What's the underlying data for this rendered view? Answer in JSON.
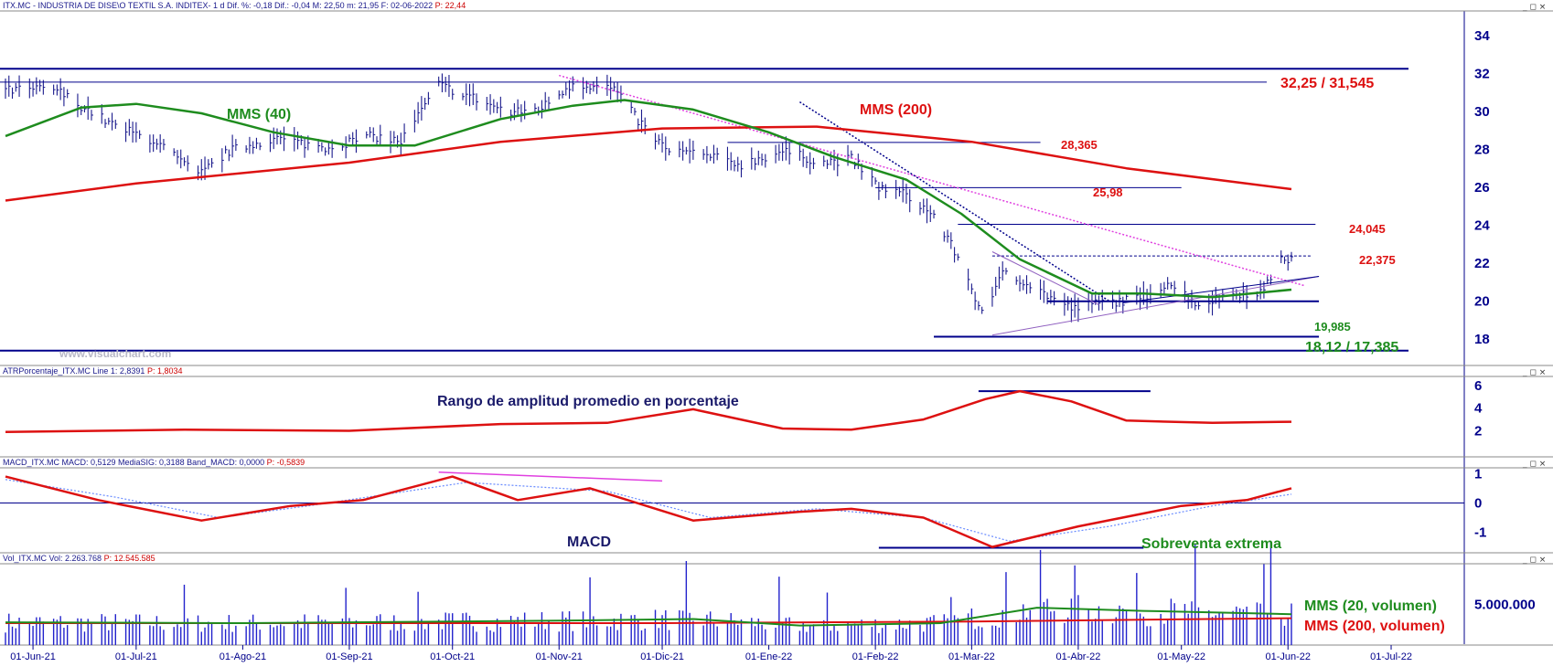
{
  "panels": {
    "price": {
      "header": "ITX.MC - INDUSTRIA DE DISE\\O TEXTIL S.A. INDITEX-  1 d  Dif. %: -0,18  Dif.: -0,04  M: 22,50  m: 21,95  F: 02-06-2022",
      "header_last": "P: 22,44",
      "watermark": "www.visualchart.com"
    },
    "atr": {
      "header": "ATRPorcentaje_ITX.MC  Line 1: 2,8391",
      "header_last": "P: 1,8034"
    },
    "macd": {
      "header": "MACD_ITX.MC  MACD: 0,5129  MediaSIG: 0,3188  Band_MACD: 0,0000",
      "header_last": "P: -0,5839"
    },
    "volume": {
      "header": "Vol_ITX.MC  Vol: 2.263.768",
      "header_last": "P: 12.545.585"
    }
  },
  "window_buttons": "_ ◻ ×",
  "colors": {
    "green": "#1e8c1e",
    "red": "#dd1111",
    "navy": "#00008b",
    "magenta": "#e040e0",
    "candle": "#1a1a8c",
    "blue": "#2222cc",
    "light_blue": "#6a8cff"
  },
  "chart_data": [
    {
      "type": "candlestick",
      "x_ticks": [
        "01-Jun-21",
        "01-Jul-21",
        "01-Ago-21",
        "01-Sep-21",
        "01-Oct-21",
        "01-Nov-21",
        "01-Dic-21",
        "01-Ene-22",
        "01-Feb-22",
        "01-Mar-22",
        "01-Abr-22",
        "01-May-22",
        "01-Jun-22",
        "01-Jul-22"
      ],
      "y_ticks": [
        18,
        20,
        22,
        24,
        26,
        28,
        30,
        32,
        34
      ],
      "ylim": [
        16.6,
        35.3
      ],
      "close_path": [
        {
          "d": "2021-05-24",
          "v": 31.1
        },
        {
          "d": "2021-06-07",
          "v": 31.2
        },
        {
          "d": "2021-06-15",
          "v": 30.3
        },
        {
          "d": "2021-06-25",
          "v": 29.2
        },
        {
          "d": "2021-07-07",
          "v": 28.4
        },
        {
          "d": "2021-07-19",
          "v": 26.6
        },
        {
          "d": "2021-07-28",
          "v": 27.9
        },
        {
          "d": "2021-08-10",
          "v": 28.6
        },
        {
          "d": "2021-08-25",
          "v": 28.1
        },
        {
          "d": "2021-09-08",
          "v": 28.7
        },
        {
          "d": "2021-09-16",
          "v": 28.4
        },
        {
          "d": "2021-09-27",
          "v": 31.4
        },
        {
          "d": "2021-10-06",
          "v": 30.8
        },
        {
          "d": "2021-10-18",
          "v": 29.9
        },
        {
          "d": "2021-10-27",
          "v": 30.2
        },
        {
          "d": "2021-11-05",
          "v": 31.5
        },
        {
          "d": "2021-11-17",
          "v": 31.2
        },
        {
          "d": "2021-11-24",
          "v": 29.5
        },
        {
          "d": "2021-12-02",
          "v": 28.0
        },
        {
          "d": "2021-12-13",
          "v": 27.7
        },
        {
          "d": "2021-12-24",
          "v": 27.2
        },
        {
          "d": "2022-01-05",
          "v": 27.9
        },
        {
          "d": "2022-01-17",
          "v": 27.3
        },
        {
          "d": "2022-01-25",
          "v": 27.5
        },
        {
          "d": "2022-02-02",
          "v": 26.0
        },
        {
          "d": "2022-02-10",
          "v": 25.6
        },
        {
          "d": "2022-02-18",
          "v": 24.5
        },
        {
          "d": "2022-02-26",
          "v": 22.0
        },
        {
          "d": "2022-03-05",
          "v": 18.9
        },
        {
          "d": "2022-03-10",
          "v": 21.7
        },
        {
          "d": "2022-03-21",
          "v": 20.5
        },
        {
          "d": "2022-03-30",
          "v": 19.6
        },
        {
          "d": "2022-04-07",
          "v": 19.9
        },
        {
          "d": "2022-04-19",
          "v": 20.1
        },
        {
          "d": "2022-04-27",
          "v": 21.0
        },
        {
          "d": "2022-05-06",
          "v": 19.8
        },
        {
          "d": "2022-05-16",
          "v": 20.4
        },
        {
          "d": "2022-05-25",
          "v": 20.5
        },
        {
          "d": "2022-05-30",
          "v": 22.4
        },
        {
          "d": "2022-06-02",
          "v": 22.1
        }
      ],
      "series": [
        {
          "name": "MMS (40)",
          "color": "#1e8c1e",
          "points": [
            {
              "d": "2021-05-24",
              "v": 28.7
            },
            {
              "d": "2021-06-15",
              "v": 30.2
            },
            {
              "d": "2021-07-01",
              "v": 30.4
            },
            {
              "d": "2021-07-20",
              "v": 29.9
            },
            {
              "d": "2021-08-10",
              "v": 28.9
            },
            {
              "d": "2021-09-01",
              "v": 28.2
            },
            {
              "d": "2021-09-20",
              "v": 28.2
            },
            {
              "d": "2021-10-15",
              "v": 29.6
            },
            {
              "d": "2021-11-05",
              "v": 30.3
            },
            {
              "d": "2021-11-20",
              "v": 30.6
            },
            {
              "d": "2021-12-10",
              "v": 30.1
            },
            {
              "d": "2022-01-01",
              "v": 28.9
            },
            {
              "d": "2022-01-20",
              "v": 27.6
            },
            {
              "d": "2022-02-10",
              "v": 26.4
            },
            {
              "d": "2022-02-26",
              "v": 24.6
            },
            {
              "d": "2022-03-15",
              "v": 22.2
            },
            {
              "d": "2022-04-05",
              "v": 20.4
            },
            {
              "d": "2022-04-20",
              "v": 20.4
            },
            {
              "d": "2022-05-10",
              "v": 20.2
            },
            {
              "d": "2022-06-02",
              "v": 20.6
            }
          ]
        },
        {
          "name": "MMS (200)",
          "color": "#dd1111",
          "points": [
            {
              "d": "2021-05-24",
              "v": 25.3
            },
            {
              "d": "2021-07-01",
              "v": 26.2
            },
            {
              "d": "2021-09-01",
              "v": 27.3
            },
            {
              "d": "2021-10-15",
              "v": 28.4
            },
            {
              "d": "2021-12-01",
              "v": 29.1
            },
            {
              "d": "2022-01-15",
              "v": 29.2
            },
            {
              "d": "2022-03-01",
              "v": 28.4
            },
            {
              "d": "2022-04-15",
              "v": 27.0
            },
            {
              "d": "2022-06-02",
              "v": 25.9
            }
          ]
        }
      ],
      "levels": [
        {
          "label": "32,25 / 31,545",
          "values": [
            32.25,
            31.545
          ],
          "color": "#dd1111"
        },
        {
          "label": "28,365",
          "values": [
            28.365
          ],
          "color": "#dd1111"
        },
        {
          "label": "25,98",
          "values": [
            25.98
          ],
          "color": "#dd1111"
        },
        {
          "label": "24,045",
          "values": [
            24.045
          ],
          "color": "#dd1111"
        },
        {
          "label": "22,375",
          "values": [
            22.375
          ],
          "color": "#dd1111"
        },
        {
          "label": "19,985",
          "values": [
            19.985
          ],
          "color": "#1e8c1e"
        },
        {
          "label": "18,12 / 17,385",
          "values": [
            18.12,
            17.385
          ],
          "color": "#1e8c1e"
        }
      ],
      "annotations": [
        "MMS (40)",
        "MMS (200)"
      ]
    },
    {
      "type": "line",
      "y_ticks": [
        2,
        4,
        6
      ],
      "ylim": [
        -0.3,
        6.8
      ],
      "annotation": "Rango de amplitud promedio en porcentaje",
      "series": [
        {
          "color": "#dd1111",
          "points": [
            {
              "d": "2021-05-24",
              "v": 1.9
            },
            {
              "d": "2021-07-15",
              "v": 2.1
            },
            {
              "d": "2021-09-01",
              "v": 2.0
            },
            {
              "d": "2021-10-15",
              "v": 2.6
            },
            {
              "d": "2021-11-15",
              "v": 2.7
            },
            {
              "d": "2021-12-10",
              "v": 3.9
            },
            {
              "d": "2022-01-05",
              "v": 2.2
            },
            {
              "d": "2022-01-25",
              "v": 2.1
            },
            {
              "d": "2022-02-15",
              "v": 3.0
            },
            {
              "d": "2022-03-05",
              "v": 4.8
            },
            {
              "d": "2022-03-15",
              "v": 5.5
            },
            {
              "d": "2022-03-30",
              "v": 4.6
            },
            {
              "d": "2022-04-15",
              "v": 2.9
            },
            {
              "d": "2022-05-10",
              "v": 2.7
            },
            {
              "d": "2022-06-02",
              "v": 2.8
            }
          ]
        }
      ]
    },
    {
      "type": "line",
      "y_ticks": [
        1,
        0,
        -1
      ],
      "ylim": [
        -1.7,
        1.2
      ],
      "annotations": [
        "MACD",
        "Sobreventa extrema"
      ],
      "series": [
        {
          "name": "MACD",
          "color": "#dd1111",
          "points": [
            {
              "d": "2021-05-24",
              "v": 0.9
            },
            {
              "d": "2021-06-20",
              "v": 0.1
            },
            {
              "d": "2021-07-20",
              "v": -0.6
            },
            {
              "d": "2021-08-15",
              "v": -0.1
            },
            {
              "d": "2021-09-05",
              "v": 0.1
            },
            {
              "d": "2021-10-01",
              "v": 0.9
            },
            {
              "d": "2021-10-20",
              "v": 0.1
            },
            {
              "d": "2021-11-10",
              "v": 0.5
            },
            {
              "d": "2021-12-10",
              "v": -0.6
            },
            {
              "d": "2022-01-10",
              "v": -0.3
            },
            {
              "d": "2022-01-25",
              "v": -0.2
            },
            {
              "d": "2022-02-15",
              "v": -0.5
            },
            {
              "d": "2022-03-07",
              "v": -1.5
            },
            {
              "d": "2022-04-01",
              "v": -0.8
            },
            {
              "d": "2022-05-01",
              "v": -0.1
            },
            {
              "d": "2022-05-20",
              "v": 0.1
            },
            {
              "d": "2022-06-02",
              "v": 0.5
            }
          ]
        },
        {
          "name": "MediaSIG",
          "color": "#6a8cff",
          "points": [
            {
              "d": "2021-05-24",
              "v": 0.8
            },
            {
              "d": "2021-06-25",
              "v": 0.2
            },
            {
              "d": "2021-07-25",
              "v": -0.5
            },
            {
              "d": "2021-08-20",
              "v": -0.1
            },
            {
              "d": "2021-10-05",
              "v": 0.7
            },
            {
              "d": "2021-11-15",
              "v": 0.4
            },
            {
              "d": "2021-12-15",
              "v": -0.5
            },
            {
              "d": "2022-01-15",
              "v": -0.2
            },
            {
              "d": "2022-02-15",
              "v": -0.5
            },
            {
              "d": "2022-03-12",
              "v": -1.3
            },
            {
              "d": "2022-04-10",
              "v": -0.8
            },
            {
              "d": "2022-05-10",
              "v": -0.1
            },
            {
              "d": "2022-06-02",
              "v": 0.3
            }
          ]
        }
      ]
    },
    {
      "type": "bar",
      "y_ticks": [
        "5.000.000"
      ],
      "ylim": [
        0,
        10000000
      ],
      "series": [
        {
          "name": "MMS (20, volumen)",
          "color": "#1e8c1e",
          "points": [
            {
              "d": "2021-05-24",
              "v": 2800000
            },
            {
              "d": "2021-08-01",
              "v": 2700000
            },
            {
              "d": "2021-11-01",
              "v": 3000000
            },
            {
              "d": "2021-12-10",
              "v": 3200000
            },
            {
              "d": "2022-01-10",
              "v": 2400000
            },
            {
              "d": "2022-02-20",
              "v": 2700000
            },
            {
              "d": "2022-03-20",
              "v": 4600000
            },
            {
              "d": "2022-04-20",
              "v": 4200000
            },
            {
              "d": "2022-06-02",
              "v": 3800000
            }
          ]
        },
        {
          "name": "MMS (200, volumen)",
          "color": "#dd1111",
          "points": [
            {
              "d": "2021-05-24",
              "v": 2700000
            },
            {
              "d": "2021-12-01",
              "v": 2700000
            },
            {
              "d": "2022-03-01",
              "v": 2900000
            },
            {
              "d": "2022-06-02",
              "v": 3300000
            }
          ]
        }
      ]
    }
  ]
}
